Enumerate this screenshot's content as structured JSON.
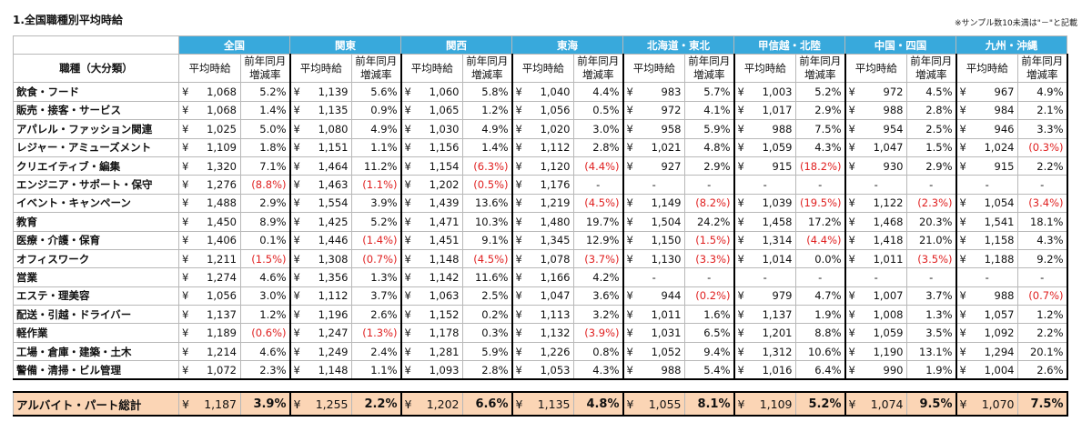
{
  "title": "1.全国職種別平均時給",
  "note": "※サンプル数10未満は\"－\"と記載",
  "category_header": "職種（大分類）",
  "sub_wage": "平均時給",
  "sub_rate_line1": "前年同月",
  "sub_rate_line2": "増減率",
  "yen": "¥",
  "regions": [
    "全国",
    "関東",
    "関西",
    "東海",
    "北海道・東北",
    "甲信越・北陸",
    "中国・四国",
    "九州・沖縄"
  ],
  "rows": [
    {
      "name": "飲食・フード",
      "cells": [
        [
          "1,068",
          "5.2%"
        ],
        [
          "1,139",
          "5.6%"
        ],
        [
          "1,060",
          "5.8%"
        ],
        [
          "1,040",
          "4.4%"
        ],
        [
          "983",
          "5.7%"
        ],
        [
          "1,003",
          "5.2%"
        ],
        [
          "972",
          "4.5%"
        ],
        [
          "967",
          "4.9%"
        ]
      ]
    },
    {
      "name": "販売・接客・サービス",
      "cells": [
        [
          "1,068",
          "1.4%"
        ],
        [
          "1,135",
          "0.9%"
        ],
        [
          "1,065",
          "1.2%"
        ],
        [
          "1,056",
          "0.5%"
        ],
        [
          "972",
          "4.1%"
        ],
        [
          "1,017",
          "2.9%"
        ],
        [
          "988",
          "2.8%"
        ],
        [
          "984",
          "2.1%"
        ]
      ]
    },
    {
      "name": "アパレル・ファッション関連",
      "cells": [
        [
          "1,025",
          "5.0%"
        ],
        [
          "1,080",
          "4.9%"
        ],
        [
          "1,030",
          "4.9%"
        ],
        [
          "1,020",
          "3.0%"
        ],
        [
          "958",
          "5.9%"
        ],
        [
          "988",
          "7.5%"
        ],
        [
          "954",
          "2.5%"
        ],
        [
          "946",
          "3.3%"
        ]
      ]
    },
    {
      "name": "レジャー・アミューズメント",
      "cells": [
        [
          "1,109",
          "1.8%"
        ],
        [
          "1,151",
          "1.1%"
        ],
        [
          "1,156",
          "1.4%"
        ],
        [
          "1,112",
          "2.8%"
        ],
        [
          "1,021",
          "4.8%"
        ],
        [
          "1,059",
          "4.3%"
        ],
        [
          "1,047",
          "1.5%"
        ],
        [
          "1,024",
          "(0.3%)"
        ]
      ]
    },
    {
      "name": "クリエイティブ・編集",
      "cells": [
        [
          "1,320",
          "7.1%"
        ],
        [
          "1,464",
          "11.2%"
        ],
        [
          "1,154",
          "(6.3%)"
        ],
        [
          "1,120",
          "(4.4%)"
        ],
        [
          "927",
          "2.9%"
        ],
        [
          "915",
          "(18.2%)"
        ],
        [
          "930",
          "2.9%"
        ],
        [
          "915",
          "2.2%"
        ]
      ]
    },
    {
      "name": "エンジニア・サポート・保守",
      "cells": [
        [
          "1,276",
          "(8.8%)"
        ],
        [
          "1,463",
          "(1.1%)"
        ],
        [
          "1,202",
          "(0.5%)"
        ],
        [
          "1,176",
          "-"
        ],
        [
          "-",
          "-"
        ],
        [
          "-",
          "-"
        ],
        [
          "-",
          "-"
        ],
        [
          "-",
          "-"
        ]
      ]
    },
    {
      "name": "イベント・キャンペーン",
      "cells": [
        [
          "1,488",
          "2.9%"
        ],
        [
          "1,554",
          "3.9%"
        ],
        [
          "1,439",
          "13.6%"
        ],
        [
          "1,219",
          "(4.5%)"
        ],
        [
          "1,149",
          "(8.2%)"
        ],
        [
          "1,039",
          "(19.5%)"
        ],
        [
          "1,122",
          "(2.3%)"
        ],
        [
          "1,054",
          "(3.4%)"
        ]
      ]
    },
    {
      "name": "教育",
      "cells": [
        [
          "1,450",
          "8.9%"
        ],
        [
          "1,425",
          "5.2%"
        ],
        [
          "1,471",
          "10.3%"
        ],
        [
          "1,480",
          "19.7%"
        ],
        [
          "1,504",
          "24.2%"
        ],
        [
          "1,458",
          "17.2%"
        ],
        [
          "1,468",
          "20.3%"
        ],
        [
          "1,541",
          "18.1%"
        ]
      ]
    },
    {
      "name": "医療・介護・保育",
      "cells": [
        [
          "1,406",
          "0.1%"
        ],
        [
          "1,446",
          "(1.4%)"
        ],
        [
          "1,451",
          "9.1%"
        ],
        [
          "1,345",
          "12.9%"
        ],
        [
          "1,150",
          "(1.5%)"
        ],
        [
          "1,314",
          "(4.4%)"
        ],
        [
          "1,418",
          "21.0%"
        ],
        [
          "1,158",
          "4.3%"
        ]
      ]
    },
    {
      "name": "オフィスワーク",
      "cells": [
        [
          "1,211",
          "(1.5%)"
        ],
        [
          "1,308",
          "(0.7%)"
        ],
        [
          "1,148",
          "(4.5%)"
        ],
        [
          "1,078",
          "(3.7%)"
        ],
        [
          "1,130",
          "(3.3%)"
        ],
        [
          "1,014",
          "0.0%"
        ],
        [
          "1,011",
          "(3.5%)"
        ],
        [
          "1,188",
          "9.2%"
        ]
      ]
    },
    {
      "name": "営業",
      "cells": [
        [
          "1,274",
          "4.6%"
        ],
        [
          "1,356",
          "1.3%"
        ],
        [
          "1,142",
          "11.6%"
        ],
        [
          "1,166",
          "4.2%"
        ],
        [
          "-",
          "-"
        ],
        [
          "-",
          "-"
        ],
        [
          "-",
          "-"
        ],
        [
          "-",
          "-"
        ]
      ]
    },
    {
      "name": "エステ・理美容",
      "cells": [
        [
          "1,056",
          "3.0%"
        ],
        [
          "1,112",
          "3.7%"
        ],
        [
          "1,063",
          "2.5%"
        ],
        [
          "1,047",
          "3.6%"
        ],
        [
          "944",
          "(0.2%)"
        ],
        [
          "979",
          "4.7%"
        ],
        [
          "1,007",
          "3.7%"
        ],
        [
          "988",
          "(0.7%)"
        ]
      ]
    },
    {
      "name": "配送・引越・ドライバー",
      "cells": [
        [
          "1,137",
          "1.2%"
        ],
        [
          "1,196",
          "2.6%"
        ],
        [
          "1,152",
          "0.2%"
        ],
        [
          "1,113",
          "3.2%"
        ],
        [
          "1,011",
          "1.6%"
        ],
        [
          "1,137",
          "1.9%"
        ],
        [
          "1,008",
          "1.3%"
        ],
        [
          "1,057",
          "1.2%"
        ]
      ]
    },
    {
      "name": "軽作業",
      "cells": [
        [
          "1,189",
          "(0.6%)"
        ],
        [
          "1,247",
          "(1.3%)"
        ],
        [
          "1,178",
          "0.3%"
        ],
        [
          "1,132",
          "(3.9%)"
        ],
        [
          "1,031",
          "6.5%"
        ],
        [
          "1,201",
          "8.8%"
        ],
        [
          "1,059",
          "3.5%"
        ],
        [
          "1,092",
          "2.2%"
        ]
      ]
    },
    {
      "name": "工場・倉庫・建築・土木",
      "cells": [
        [
          "1,214",
          "4.6%"
        ],
        [
          "1,249",
          "2.4%"
        ],
        [
          "1,281",
          "5.9%"
        ],
        [
          "1,226",
          "0.8%"
        ],
        [
          "1,052",
          "9.4%"
        ],
        [
          "1,312",
          "10.6%"
        ],
        [
          "1,190",
          "13.1%"
        ],
        [
          "1,294",
          "20.1%"
        ]
      ]
    },
    {
      "name": "警備・清掃・ビル管理",
      "cells": [
        [
          "1,072",
          "2.3%"
        ],
        [
          "1,148",
          "1.1%"
        ],
        [
          "1,093",
          "2.8%"
        ],
        [
          "1,053",
          "4.3%"
        ],
        [
          "988",
          "5.4%"
        ],
        [
          "1,016",
          "6.4%"
        ],
        [
          "990",
          "1.9%"
        ],
        [
          "1,004",
          "2.6%"
        ]
      ]
    }
  ],
  "total": {
    "name": "アルバイト・パート総計",
    "cells": [
      [
        "1,187",
        "3.9%"
      ],
      [
        "1,255",
        "2.2%"
      ],
      [
        "1,202",
        "6.6%"
      ],
      [
        "1,135",
        "4.8%"
      ],
      [
        "1,055",
        "8.1%"
      ],
      [
        "1,109",
        "5.2%"
      ],
      [
        "1,074",
        "9.5%"
      ],
      [
        "1,070",
        "7.5%"
      ]
    ]
  }
}
